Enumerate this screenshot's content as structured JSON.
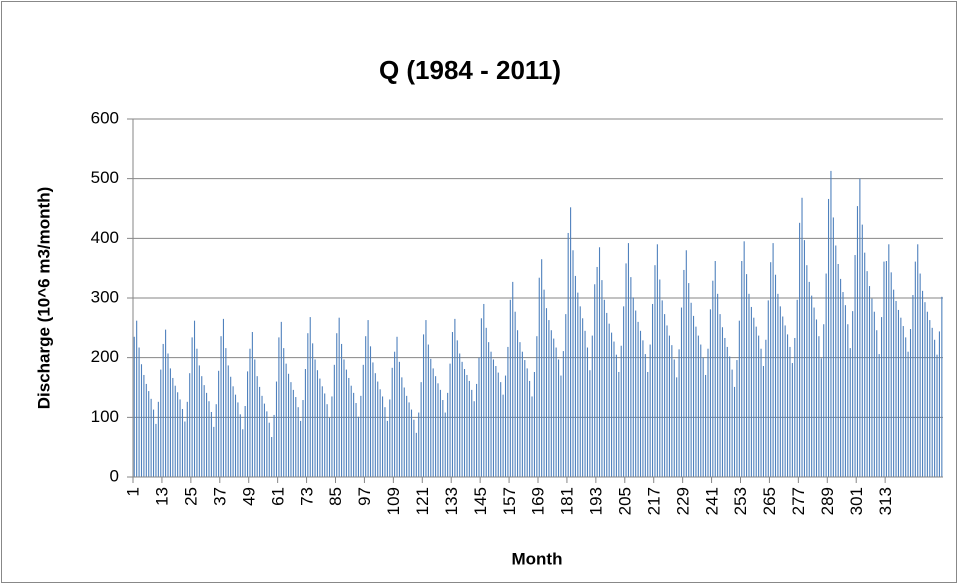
{
  "chart_data": {
    "type": "bar",
    "title": "Q (1984 - 2011)",
    "x_label": "Month",
    "y_label": "Discharge (10^6 m3/month)",
    "categories": [
      "1",
      null,
      null,
      null,
      null,
      null,
      null,
      null,
      null,
      null,
      null,
      null,
      "13",
      null,
      null,
      null,
      null,
      null,
      null,
      null,
      null,
      null,
      null,
      null,
      "25",
      null,
      null,
      null,
      null,
      null,
      null,
      null,
      null,
      null,
      null,
      null,
      "37",
      null,
      null,
      null,
      null,
      null,
      null,
      null,
      null,
      null,
      null,
      null,
      "49",
      null,
      null,
      null,
      null,
      null,
      null,
      null,
      null,
      null,
      null,
      null,
      "61",
      null,
      null,
      null,
      null,
      null,
      null,
      null,
      null,
      null,
      null,
      null,
      "73",
      null,
      null,
      null,
      null,
      null,
      null,
      null,
      null,
      null,
      null,
      null,
      "85",
      null,
      null,
      null,
      null,
      null,
      null,
      null,
      null,
      null,
      null,
      null,
      "97",
      null,
      null,
      null,
      null,
      null,
      null,
      null,
      null,
      null,
      null,
      null,
      "109",
      null,
      null,
      null,
      null,
      null,
      null,
      null,
      null,
      null,
      null,
      null,
      "121",
      null,
      null,
      null,
      null,
      null,
      null,
      null,
      null,
      null,
      null,
      null,
      "133",
      null,
      null,
      null,
      null,
      null,
      null,
      null,
      null,
      null,
      null,
      null,
      "145",
      null,
      null,
      null,
      null,
      null,
      null,
      null,
      null,
      null,
      null,
      null,
      "157",
      null,
      null,
      null,
      null,
      null,
      null,
      null,
      null,
      null,
      null,
      null,
      "169",
      null,
      null,
      null,
      null,
      null,
      null,
      null,
      null,
      null,
      null,
      null,
      "181",
      null,
      null,
      null,
      null,
      null,
      null,
      null,
      null,
      null,
      null,
      null,
      "193",
      null,
      null,
      null,
      null,
      null,
      null,
      null,
      null,
      null,
      null,
      null,
      "205",
      null,
      null,
      null,
      null,
      null,
      null,
      null,
      null,
      null,
      null,
      null,
      "217",
      null,
      null,
      null,
      null,
      null,
      null,
      null,
      null,
      null,
      null,
      null,
      "229",
      null,
      null,
      null,
      null,
      null,
      null,
      null,
      null,
      null,
      null,
      null,
      "241",
      null,
      null,
      null,
      null,
      null,
      null,
      null,
      null,
      null,
      null,
      null,
      "253",
      null,
      null,
      null,
      null,
      null,
      null,
      null,
      null,
      null,
      null,
      null,
      "265",
      null,
      null,
      null,
      null,
      null,
      null,
      null,
      null,
      null,
      null,
      null,
      "277",
      null,
      null,
      null,
      null,
      null,
      null,
      null,
      null,
      null,
      null,
      null,
      "289",
      null,
      null,
      null,
      null,
      null,
      null,
      null,
      null,
      null,
      null,
      null,
      "301",
      null,
      null,
      null,
      null,
      null,
      null,
      null,
      null,
      null,
      null,
      null,
      "313",
      null,
      null,
      null,
      null,
      null,
      null,
      null,
      null,
      null,
      null,
      null,
      null,
      null,
      null,
      null,
      null,
      null,
      null,
      null,
      null,
      null,
      null,
      null
    ],
    "values": [
      235,
      262,
      217,
      189,
      171,
      156,
      144,
      131,
      113,
      89,
      126,
      180,
      223,
      247,
      207,
      182,
      166,
      153,
      142,
      130,
      114,
      93,
      126,
      174,
      234,
      262,
      215,
      187,
      169,
      154,
      141,
      127,
      109,
      84,
      122,
      178,
      236,
      265,
      216,
      187,
      168,
      152,
      138,
      125,
      105,
      80,
      119,
      177,
      215,
      243,
      197,
      169,
      151,
      136,
      123,
      110,
      91,
      67,
      104,
      160,
      234,
      260,
      216,
      190,
      173,
      159,
      146,
      134,
      117,
      94,
      129,
      181,
      241,
      268,
      224,
      197,
      179,
      165,
      152,
      140,
      122,
      99,
      135,
      188,
      241,
      267,
      223,
      197,
      180,
      166,
      153,
      141,
      124,
      101,
      136,
      188,
      236,
      263,
      219,
      192,
      174,
      160,
      147,
      135,
      117,
      94,
      130,
      183,
      210,
      235,
      193,
      167,
      150,
      136,
      125,
      113,
      96,
      74,
      108,
      159,
      239,
      263,
      222,
      198,
      182,
      169,
      157,
      146,
      129,
      108,
      141,
      190,
      243,
      265,
      229,
      207,
      193,
      181,
      171,
      161,
      146,
      127,
      156,
      200,
      266,
      290,
      250,
      226,
      210,
      197,
      186,
      175,
      159,
      138,
      170,
      218,
      297,
      327,
      277,
      246,
      226,
      210,
      196,
      182,
      161,
      135,
      176,
      236,
      334,
      365,
      314,
      283,
      263,
      246,
      232,
      217,
      197,
      170,
      211,
      273,
      409,
      452,
      380,
      337,
      309,
      286,
      266,
      245,
      217,
      179,
      237,
      323,
      352,
      385,
      330,
      297,
      275,
      257,
      242,
      227,
      205,
      176,
      220,
      286,
      358,
      392,
      335,
      301,
      279,
      260,
      245,
      229,
      206,
      176,
      222,
      290,
      355,
      390,
      331,
      296,
      273,
      254,
      237,
      221,
      197,
      167,
      214,
      284,
      347,
      380,
      325,
      292,
      270,
      252,
      237,
      222,
      200,
      171,
      215,
      281,
      329,
      362,
      307,
      273,
      251,
      233,
      218,
      202,
      180,
      151,
      196,
      262,
      362,
      395,
      340,
      307,
      285,
      267,
      252,
      237,
      215,
      186,
      230,
      296,
      360,
      392,
      339,
      307,
      286,
      269,
      254,
      239,
      218,
      191,
      233,
      297,
      426,
      468,
      397,
      355,
      327,
      304,
      284,
      264,
      236,
      199,
      256,
      341,
      466,
      513,
      435,
      388,
      357,
      332,
      310,
      288,
      256,
      216,
      278,
      372,
      454,
      500,
      423,
      376,
      345,
      320,
      299,
      277,
      246,
      206,
      268,
      361,
      362,
      390,
      343,
      314,
      295,
      280,
      267,
      253,
      234,
      210,
      248,
      305,
      361,
      390,
      341,
      312,
      293,
      277,
      263,
      250,
      230,
      205,
      244,
      302
    ],
    "color": "#4f81bd",
    "ylim": [
      0,
      600
    ],
    "yticks": [
      0,
      100,
      200,
      300,
      400,
      500,
      600
    ],
    "grid": true
  }
}
